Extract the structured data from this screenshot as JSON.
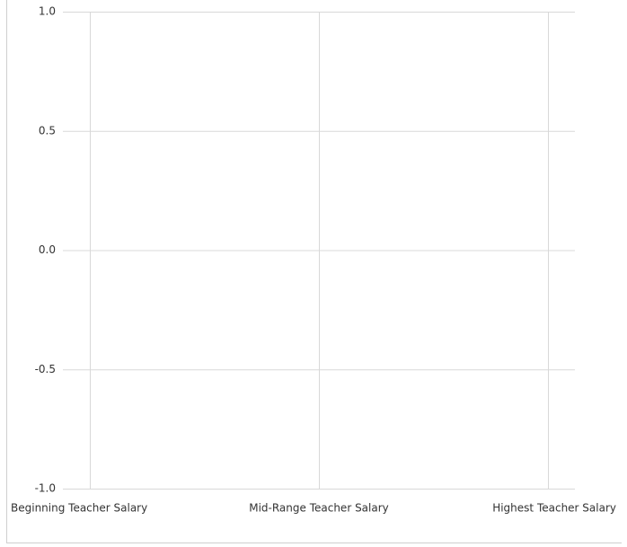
{
  "chart_data": {
    "type": "line",
    "categories": [
      "Beginning Teacher Salary",
      "Mid-Range Teacher Salary",
      "Highest Teacher Salary"
    ],
    "ylim": [
      -1,
      1
    ],
    "yticks": [
      {
        "value": 1,
        "label": "1.0"
      },
      {
        "value": 0.5,
        "label": "0.5"
      },
      {
        "value": 0,
        "label": "0.0"
      },
      {
        "value": -0.5,
        "label": "-0.5"
      },
      {
        "value": -1,
        "label": "-1.0"
      }
    ],
    "grid": true
  }
}
